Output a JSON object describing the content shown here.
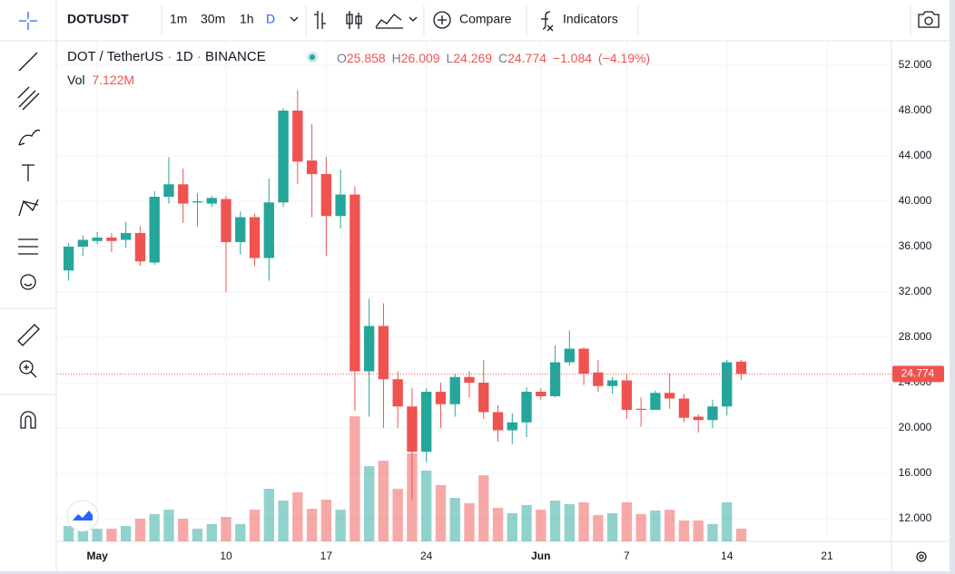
{
  "header": {
    "symbol": "DOTUSDT",
    "intervals": [
      "1m",
      "30m",
      "1h",
      "D"
    ],
    "compare": "Compare",
    "indicators": "Indicators"
  },
  "legend": {
    "symbol": "DOT / TetherUS",
    "interval": "1D",
    "exchange": "BINANCE",
    "separator": "·",
    "ohlc_labels": [
      "O",
      "H",
      "L",
      "C"
    ],
    "open": "25.858",
    "high": "26.009",
    "low": "24.269",
    "close": "24.774",
    "change": "−1.084",
    "change_pct": "(−4.19%)",
    "vol_label": "Vol",
    "vol_value": "7.122M"
  },
  "chart_data": {
    "type": "candlestick",
    "x": [
      -1,
      0,
      1,
      2,
      3,
      4,
      5,
      6,
      7,
      8,
      9,
      10,
      11,
      12,
      13,
      14,
      15,
      16,
      17,
      18,
      19,
      20,
      21,
      22,
      23,
      24,
      25,
      26,
      27,
      28,
      29,
      30,
      31,
      32,
      33,
      34,
      35,
      36,
      37,
      38,
      39,
      40,
      41,
      42,
      43,
      44,
      45,
      46
    ],
    "open": [
      33.9,
      36.0,
      36.5,
      36.8,
      36.6,
      37.2,
      34.6,
      40.4,
      41.5,
      39.9,
      39.8,
      40.2,
      36.4,
      38.6,
      35.0,
      39.9,
      48.0,
      43.6,
      42.4,
      38.7,
      40.6,
      25.0,
      29.0,
      24.3,
      21.9,
      17.9,
      23.2,
      22.1,
      24.5,
      24.0,
      21.4,
      19.8,
      20.5,
      23.2,
      22.8,
      25.8,
      27.0,
      24.9,
      23.7,
      24.2,
      21.7,
      21.6,
      23.1,
      22.6,
      21.0,
      20.7,
      21.9,
      25.858
    ],
    "high": [
      36.3,
      37.0,
      37.3,
      37.2,
      38.2,
      37.8,
      40.9,
      43.9,
      42.9,
      40.7,
      40.5,
      40.5,
      39.1,
      38.9,
      42.0,
      48.2,
      49.8,
      46.8,
      43.9,
      42.8,
      41.3,
      31.4,
      31.0,
      25.0,
      23.5,
      23.5,
      24.0,
      24.8,
      25.0,
      26.0,
      22.0,
      21.3,
      23.6,
      23.5,
      27.3,
      28.6,
      27.1,
      26.0,
      24.5,
      24.8,
      22.7,
      23.3,
      24.8,
      23.0,
      21.2,
      22.5,
      26.0,
      26.009
    ],
    "low": [
      33.0,
      35.2,
      36.2,
      35.5,
      35.9,
      34.3,
      34.4,
      39.8,
      38.1,
      37.8,
      39.5,
      32.0,
      35.3,
      34.3,
      33.0,
      39.5,
      41.5,
      38.6,
      35.2,
      37.6,
      21.5,
      21.0,
      20.0,
      20.0,
      13.7,
      17.0,
      20.0,
      21.0,
      22.7,
      20.8,
      18.8,
      18.6,
      19.2,
      22.5,
      22.7,
      25.5,
      23.8,
      23.2,
      23.0,
      20.8,
      20.1,
      21.6,
      21.7,
      20.5,
      19.6,
      20.0,
      21.1,
      24.269
    ],
    "close": [
      36.0,
      36.6,
      36.8,
      36.5,
      37.2,
      34.7,
      40.4,
      41.5,
      39.8,
      40.0,
      40.3,
      36.4,
      38.6,
      35.0,
      39.9,
      48.0,
      43.5,
      42.4,
      38.7,
      40.6,
      25.0,
      29.0,
      24.3,
      21.9,
      17.9,
      23.2,
      22.1,
      24.5,
      24.0,
      21.4,
      19.8,
      20.5,
      23.2,
      22.8,
      25.8,
      27.0,
      24.8,
      23.7,
      24.2,
      21.6,
      21.6,
      23.1,
      22.6,
      20.9,
      20.7,
      21.9,
      25.8,
      24.774
    ],
    "volume": [
      8.6,
      7.1,
      7.1,
      7.1,
      8.6,
      12.7,
      15.3,
      17.8,
      12.7,
      7.1,
      9.7,
      13.7,
      9.7,
      17.8,
      29.5,
      22.9,
      27.5,
      18.3,
      23.4,
      17.8,
      70.2,
      42.2,
      45.3,
      29.5,
      49.4,
      39.7,
      31.6,
      24.4,
      21.4,
      37.1,
      18.8,
      15.8,
      20.4,
      17.8,
      22.9,
      20.9,
      21.9,
      14.8,
      15.8,
      21.9,
      15.3,
      17.3,
      17.8,
      11.7,
      11.7,
      9.7,
      21.9,
      7.122
    ],
    "up_color": "#26a69a",
    "down_color": "#ef5350",
    "xlim": [
      -1.8,
      56.5
    ],
    "xticks": [
      {
        "value": 1,
        "label": "May"
      },
      10,
      17,
      24,
      {
        "value": 32,
        "label": "Jun"
      },
      {
        "value": 38,
        "label": "7"
      },
      {
        "value": 45,
        "label": "14"
      },
      {
        "value": 52,
        "label": "21"
      }
    ],
    "ylim": [
      10,
      54.16
    ],
    "yticks": [
      {
        "value": 12,
        "label": "12.000"
      },
      {
        "value": 16,
        "label": "16.000"
      },
      {
        "value": 20,
        "label": "20.000"
      },
      {
        "value": 24,
        "label": "24.000"
      },
      {
        "value": 28,
        "label": "28.000"
      },
      {
        "value": 32,
        "label": "32.000"
      },
      {
        "value": 36,
        "label": "36.000"
      },
      {
        "value": 40,
        "label": "40.000"
      },
      {
        "value": 44,
        "label": "44.000"
      },
      {
        "value": 48,
        "label": "48.000"
      },
      {
        "value": 52,
        "label": "52.000"
      }
    ],
    "vlim": [
      0,
      281
    ],
    "last_price": {
      "value": 24.774,
      "label": "24.774"
    },
    "grid": true
  }
}
